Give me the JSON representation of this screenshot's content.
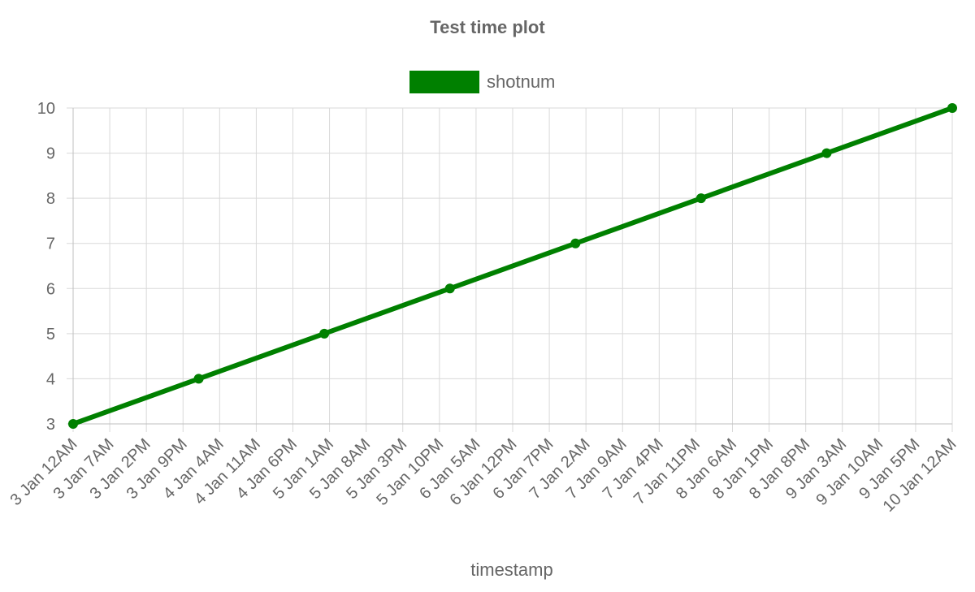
{
  "chart_data": {
    "type": "line",
    "title": "Test time plot",
    "xlabel": "timestamp",
    "ylabel": "",
    "ylim": [
      3,
      10
    ],
    "y_ticks": [
      3,
      4,
      5,
      6,
      7,
      8,
      9,
      10
    ],
    "x_range": [
      "2020-01-03 00:00",
      "2020-01-10 00:00"
    ],
    "x_tick_labels": [
      "3 Jan 12AM",
      "3 Jan 7AM",
      "3 Jan 2PM",
      "3 Jan 9PM",
      "4 Jan 4AM",
      "4 Jan 11AM",
      "4 Jan 6PM",
      "5 Jan 1AM",
      "5 Jan 8AM",
      "5 Jan 3PM",
      "5 Jan 10PM",
      "6 Jan 5AM",
      "6 Jan 12PM",
      "6 Jan 7PM",
      "7 Jan 2AM",
      "7 Jan 9AM",
      "7 Jan 4PM",
      "7 Jan 11PM",
      "8 Jan 6AM",
      "8 Jan 1PM",
      "8 Jan 8PM",
      "9 Jan 3AM",
      "9 Jan 10AM",
      "9 Jan 5PM",
      "10 Jan 12AM"
    ],
    "grid": true,
    "legend_position": "top",
    "series": [
      {
        "name": "shotnum",
        "color": "#008000",
        "points": [
          {
            "x": "2020-01-03 00:00",
            "y": 3
          },
          {
            "x": "2020-01-04 00:00",
            "y": 4
          },
          {
            "x": "2020-01-05 00:00",
            "y": 5
          },
          {
            "x": "2020-01-06 00:00",
            "y": 6
          },
          {
            "x": "2020-01-07 00:00",
            "y": 7
          },
          {
            "x": "2020-01-08 00:00",
            "y": 8
          },
          {
            "x": "2020-01-09 00:00",
            "y": 9
          },
          {
            "x": "2020-01-10 00:00",
            "y": 10
          }
        ]
      }
    ]
  }
}
